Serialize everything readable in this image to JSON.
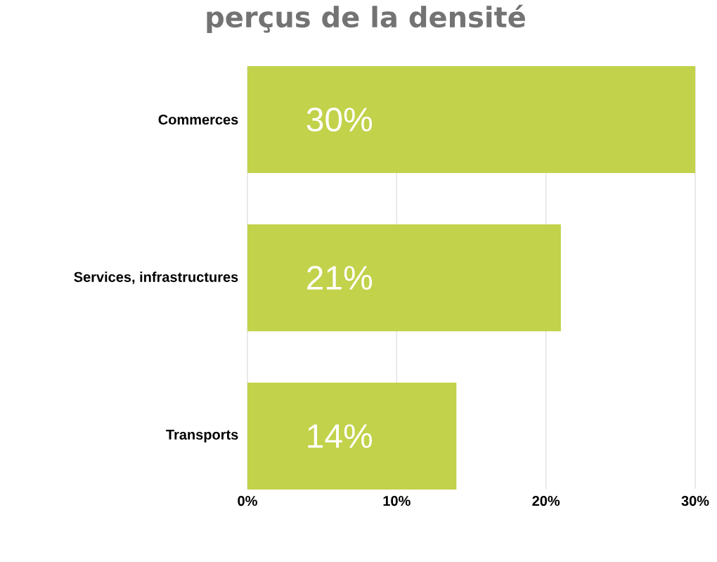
{
  "chart_data": {
    "type": "bar",
    "orientation": "horizontal",
    "title": "perçus de la densité",
    "categories": [
      "Commerces",
      "Services, infrastructures",
      "Transports"
    ],
    "values": [
      30,
      21,
      14
    ],
    "color": "#c2d24a",
    "value_labels": [
      "30%",
      "21%",
      "14%"
    ],
    "xlim": [
      0,
      30
    ],
    "xticks": [
      {
        "value": 0,
        "label": "0%"
      },
      {
        "value": 10,
        "label": "10%"
      },
      {
        "value": 20,
        "label": "20%"
      },
      {
        "value": 30,
        "label": "30%"
      }
    ],
    "grid": "x"
  }
}
